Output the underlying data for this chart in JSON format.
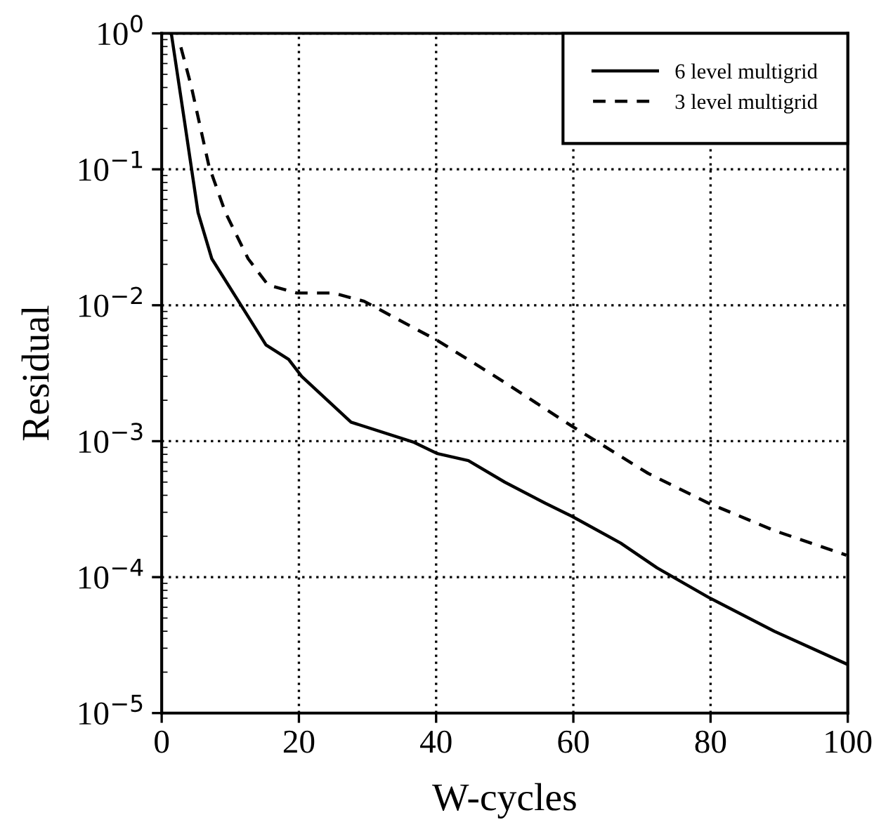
{
  "chart_data": {
    "type": "line",
    "xlabel": "W-cycles",
    "ylabel": "Residual",
    "log": "y",
    "grid": true,
    "legend": "top right",
    "xlim": [
      0,
      100
    ],
    "xticks": [
      0,
      20,
      40,
      60,
      80,
      100
    ],
    "ylim": [
      1e-05,
      1
    ],
    "yticks": [
      {
        "value": 1e-05,
        "label": "10$^{−5}$"
      },
      {
        "value": 0.0001,
        "label": "10$^{−4}$"
      },
      {
        "value": 0.001,
        "label": "10$^{−3}$"
      },
      {
        "value": 0.01,
        "label": "10$^{−2}$"
      },
      {
        "value": 0.1,
        "label": "10$^{−1}$"
      },
      {
        "value": 1,
        "label": "10$^{0}$"
      }
    ],
    "series": [
      {
        "name": "6 level multigrid",
        "color": "#000000",
        "line_style": "solid",
        "x": [
          1.4,
          3.3,
          4.3,
          5.3,
          7.3,
          11.2,
          15.2,
          18.5,
          20.4,
          27.6,
          36.8,
          40.2,
          44.7,
          50,
          55.9,
          59.8,
          66.9,
          72.2,
          79.7,
          89.3,
          99.8
        ],
        "values": [
          1.0,
          0.23,
          0.105,
          0.048,
          0.022,
          0.0107,
          0.0051,
          0.004,
          0.003,
          0.00138,
          0.00098,
          0.00081,
          0.00072,
          0.0005,
          0.00035,
          0.00028,
          0.000178,
          0.000117,
          7.1e-05,
          4e-05,
          2.3e-05
        ]
      },
      {
        "name": "3 level multigrid",
        "color": "#000000",
        "line_style": "dashed",
        "x": [
          2.8,
          4.3,
          6.9,
          9.3,
          12.6,
          15.5,
          19.7,
          25,
          29.5,
          40.2,
          48.6,
          59.8,
          70.9,
          79.7,
          89.3,
          99.8
        ],
        "values": [
          0.79,
          0.41,
          0.105,
          0.048,
          0.022,
          0.0141,
          0.0123,
          0.0123,
          0.0107,
          0.0055,
          0.003,
          0.00129,
          0.00058,
          0.00035,
          0.00022,
          0.000145
        ]
      }
    ]
  }
}
